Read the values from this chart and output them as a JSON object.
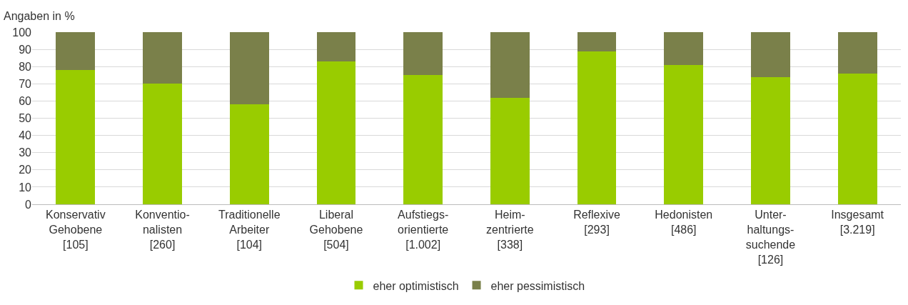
{
  "chart_data": {
    "type": "bar",
    "ylabel": "Angaben in %",
    "categories": [
      "Konservativ\nGehobene\n[105]",
      "Konventio-\nnalisten\n[260]",
      "Traditionelle\nArbeiter\n[104]",
      "Liberal\nGehobene\n[504]",
      "Aufstiegs-\norientierte\n[1.002]",
      "Heim-\nzentrierte\n[338]",
      "Reflexive\n[293]",
      "Hedonisten\n[486]",
      "Unter-\nhaltungs-\nsuchende\n[126]",
      "Insgesamt\n[3.219]"
    ],
    "series": [
      {
        "name": "eher optimistisch",
        "color": "#99cc00",
        "values": [
          78,
          70,
          58,
          83,
          75,
          62,
          89,
          81,
          74,
          76
        ]
      },
      {
        "name": "eher pessimistisch",
        "color": "#7a804a",
        "values": [
          22,
          30,
          42,
          17,
          25,
          38,
          11,
          19,
          26,
          24
        ]
      }
    ],
    "stacked": true,
    "ylim": [
      0,
      100
    ],
    "yticks": [
      0,
      10,
      20,
      30,
      40,
      50,
      60,
      70,
      80,
      90,
      100
    ],
    "grid": "y",
    "legend": "bottom"
  }
}
